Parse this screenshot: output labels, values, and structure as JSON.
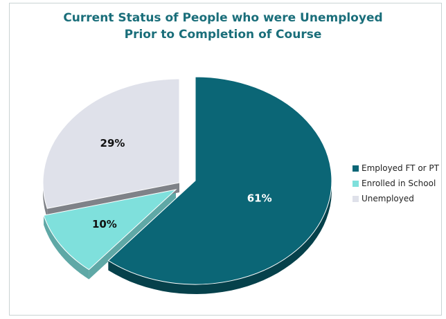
{
  "chart_data": {
    "type": "pie",
    "title": "Current Status of People who were Unemployed Prior to Completion of Course",
    "title_lines": [
      "Current Status of People who were Unemployed",
      "Prior to Completion of Course"
    ],
    "categories": [
      "Employed FT or PT",
      "Enrolled in School",
      "Unemployed"
    ],
    "values": [
      61,
      10,
      29
    ],
    "data_labels": [
      "61%",
      "10%",
      "29%"
    ],
    "colors": [
      "#0b6676",
      "#7fe0dc",
      "#dfe1ea"
    ],
    "side_colors": [
      "#06414b",
      "#5fa8a6",
      "#7f8288"
    ],
    "legend_position": "right",
    "style": "3d-exploded"
  }
}
